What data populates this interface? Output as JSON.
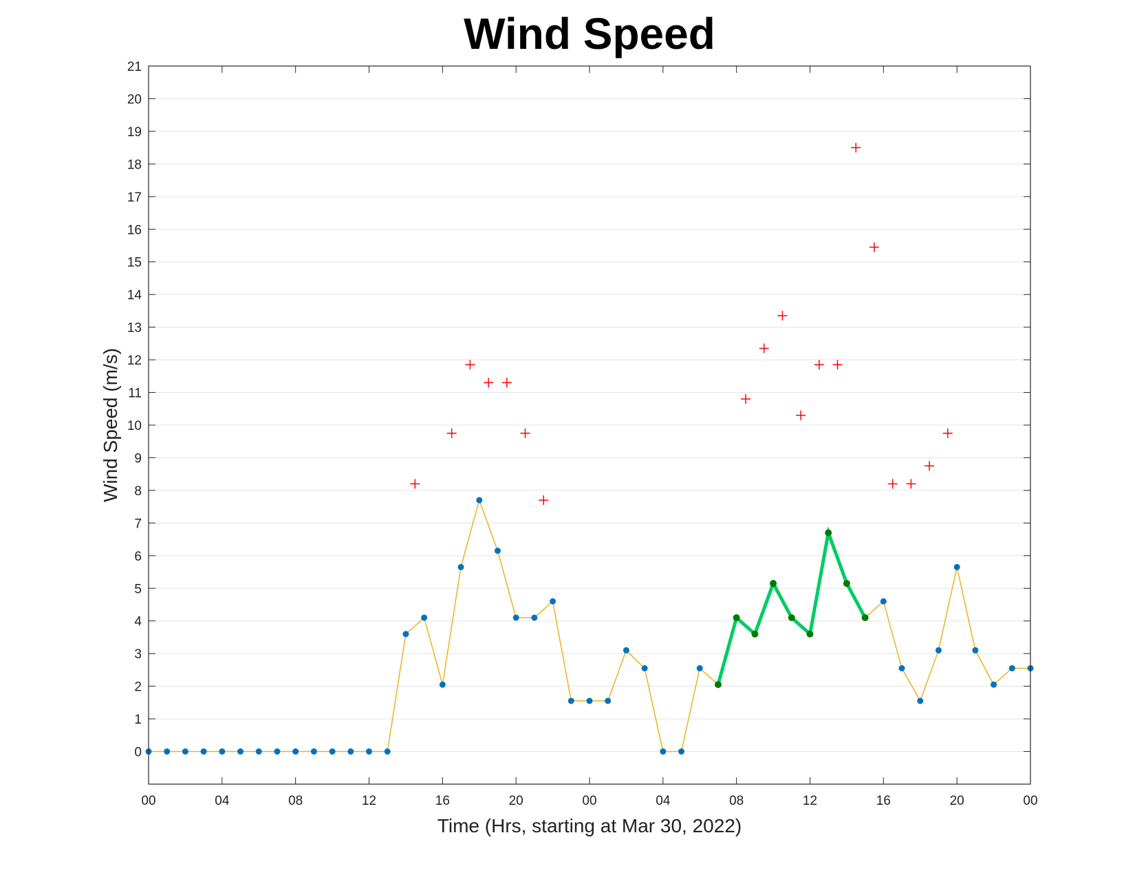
{
  "chart_data": {
    "type": "line",
    "title": "Wind Speed",
    "xlabel": "Time (Hrs, starting at Mar 30, 2022)",
    "ylabel": "Wind Speed (m/s)",
    "xlim": [
      0,
      48
    ],
    "ylim": [
      -1,
      21
    ],
    "grid": "horizontal",
    "x_tick_labels": [
      "00",
      "04",
      "08",
      "12",
      "16",
      "20",
      "00",
      "04",
      "08",
      "12",
      "16",
      "20",
      "00"
    ],
    "y_ticks": [
      0,
      1,
      2,
      3,
      4,
      5,
      6,
      7,
      8,
      9,
      10,
      11,
      12,
      13,
      14,
      15,
      16,
      17,
      18,
      19,
      20,
      21
    ],
    "colors": {
      "mean_line": "#EDB120",
      "mean_marker": "#0072BD",
      "highlight_line": "#00CC66",
      "highlight_marker": "#007A00",
      "gust_marker": "#FF0000"
    },
    "series": [
      {
        "kind": "mean",
        "x": [
          0,
          1,
          2,
          3,
          4,
          5,
          6,
          7,
          8,
          9,
          10,
          11,
          12,
          13,
          14,
          15,
          16,
          17,
          18,
          19,
          20,
          21,
          22,
          23,
          24,
          25,
          26,
          27,
          28,
          29,
          30,
          31,
          32,
          33,
          34,
          35,
          36,
          37,
          38,
          39,
          40,
          41,
          42,
          43,
          44,
          45,
          46,
          47,
          48
        ],
        "values": [
          0,
          0,
          0,
          0,
          0,
          0,
          0,
          0,
          0,
          0,
          0,
          0,
          0,
          0,
          3.6,
          4.1,
          2.05,
          5.65,
          7.7,
          6.15,
          4.1,
          4.1,
          4.6,
          1.55,
          1.55,
          1.55,
          3.1,
          2.55,
          0,
          0,
          2.55,
          2.05,
          4.1,
          3.6,
          5.15,
          4.1,
          3.6,
          6.7,
          5.15,
          4.1,
          4.6,
          2.55,
          1.55,
          3.1,
          5.65,
          3.1,
          2.05,
          2.55,
          2.55
        ]
      },
      {
        "kind": "highlight",
        "x": [
          31,
          32,
          33,
          34,
          35,
          36,
          37,
          38,
          39
        ],
        "values": [
          2.05,
          4.1,
          3.6,
          5.15,
          4.1,
          3.6,
          6.7,
          5.15,
          4.1
        ]
      },
      {
        "kind": "gust",
        "x": [
          14.5,
          16.5,
          17.5,
          18.5,
          19.5,
          20.5,
          21.5,
          32.5,
          33.5,
          34.5,
          35.5,
          36.5,
          37.5,
          38.5,
          39.5,
          40.5,
          41.5,
          42.5,
          43.5
        ],
        "values": [
          8.2,
          9.75,
          11.85,
          11.3,
          11.3,
          9.75,
          7.7,
          10.8,
          12.35,
          13.35,
          10.3,
          11.85,
          11.85,
          18.5,
          15.45,
          8.2,
          8.2,
          8.75,
          9.75
        ]
      }
    ]
  }
}
